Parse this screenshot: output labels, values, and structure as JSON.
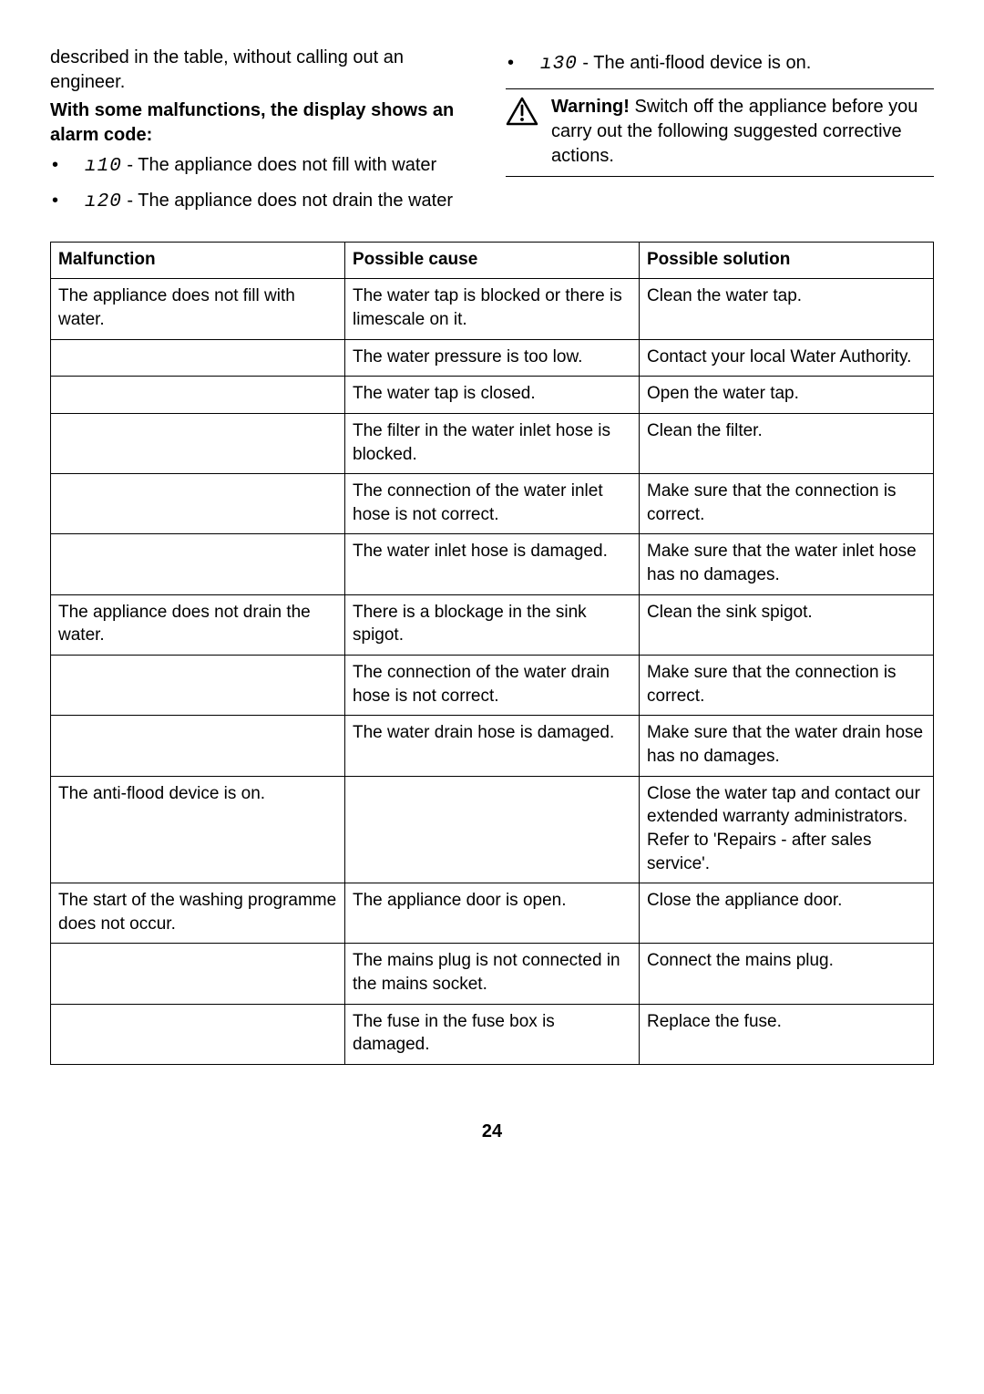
{
  "columns": {
    "left": {
      "intro": "described in the table, without calling out an engineer.",
      "heading": "With some malfunctions, the display shows an alarm code:",
      "codes": [
        {
          "code": "ı10",
          "label": " - The appliance does not fill with water"
        },
        {
          "code": "ı20",
          "label": " - The appliance does not drain the water"
        }
      ]
    },
    "right": {
      "code": {
        "code": "ı30",
        "label": " - The anti-flood device is on."
      },
      "warning": {
        "lead": "Warning!",
        "text": " Switch off the appliance before you carry out the following suggested corrective actions."
      }
    }
  },
  "table": {
    "headers": [
      "Malfunction",
      "Possible cause",
      "Possible solution"
    ],
    "rows": [
      [
        "The appliance does not fill with water.",
        "The water tap is blocked or there is limescale on it.",
        "Clean the water tap."
      ],
      [
        "",
        "The water pressure is too low.",
        "Contact your local Water Authority."
      ],
      [
        "",
        "The water tap is closed.",
        "Open the water tap."
      ],
      [
        "",
        "The filter in the water inlet hose is blocked.",
        "Clean the filter."
      ],
      [
        "",
        "The connection of the water inlet hose is not correct.",
        "Make sure that the connection is correct."
      ],
      [
        "",
        "The water inlet hose is damaged.",
        "Make sure that the water inlet hose has no damages."
      ],
      [
        "The appliance does not drain the water.",
        "There is a blockage in the sink spigot.",
        "Clean the sink spigot."
      ],
      [
        "",
        "The connection of the water drain hose is not correct.",
        "Make sure that the connection is correct."
      ],
      [
        "",
        "The water drain hose is damaged.",
        "Make sure that the water drain hose has no damages."
      ],
      [
        "The anti-flood device is on.",
        "",
        "Close the water tap and contact our extended warranty administrators. Refer to 'Repairs - after sales service'."
      ],
      [
        "The start of the washing programme does not occur.",
        "The appliance door is open.",
        "Close the appliance door."
      ],
      [
        "",
        "The mains plug is not connected in the mains socket.",
        "Connect the mains plug."
      ],
      [
        "",
        "The fuse in the fuse box is damaged.",
        "Replace the fuse."
      ]
    ]
  },
  "pageNumber": "24",
  "style": {
    "pageWidth": 1080,
    "pageHeight": 1529,
    "background": "#ffffff",
    "textColor": "#000000",
    "borderColor": "#000000",
    "bodyFontSize": 20,
    "tableFontSize": 19,
    "columnWidths": [
      "33.3%",
      "33.3%",
      "33.4%"
    ]
  }
}
